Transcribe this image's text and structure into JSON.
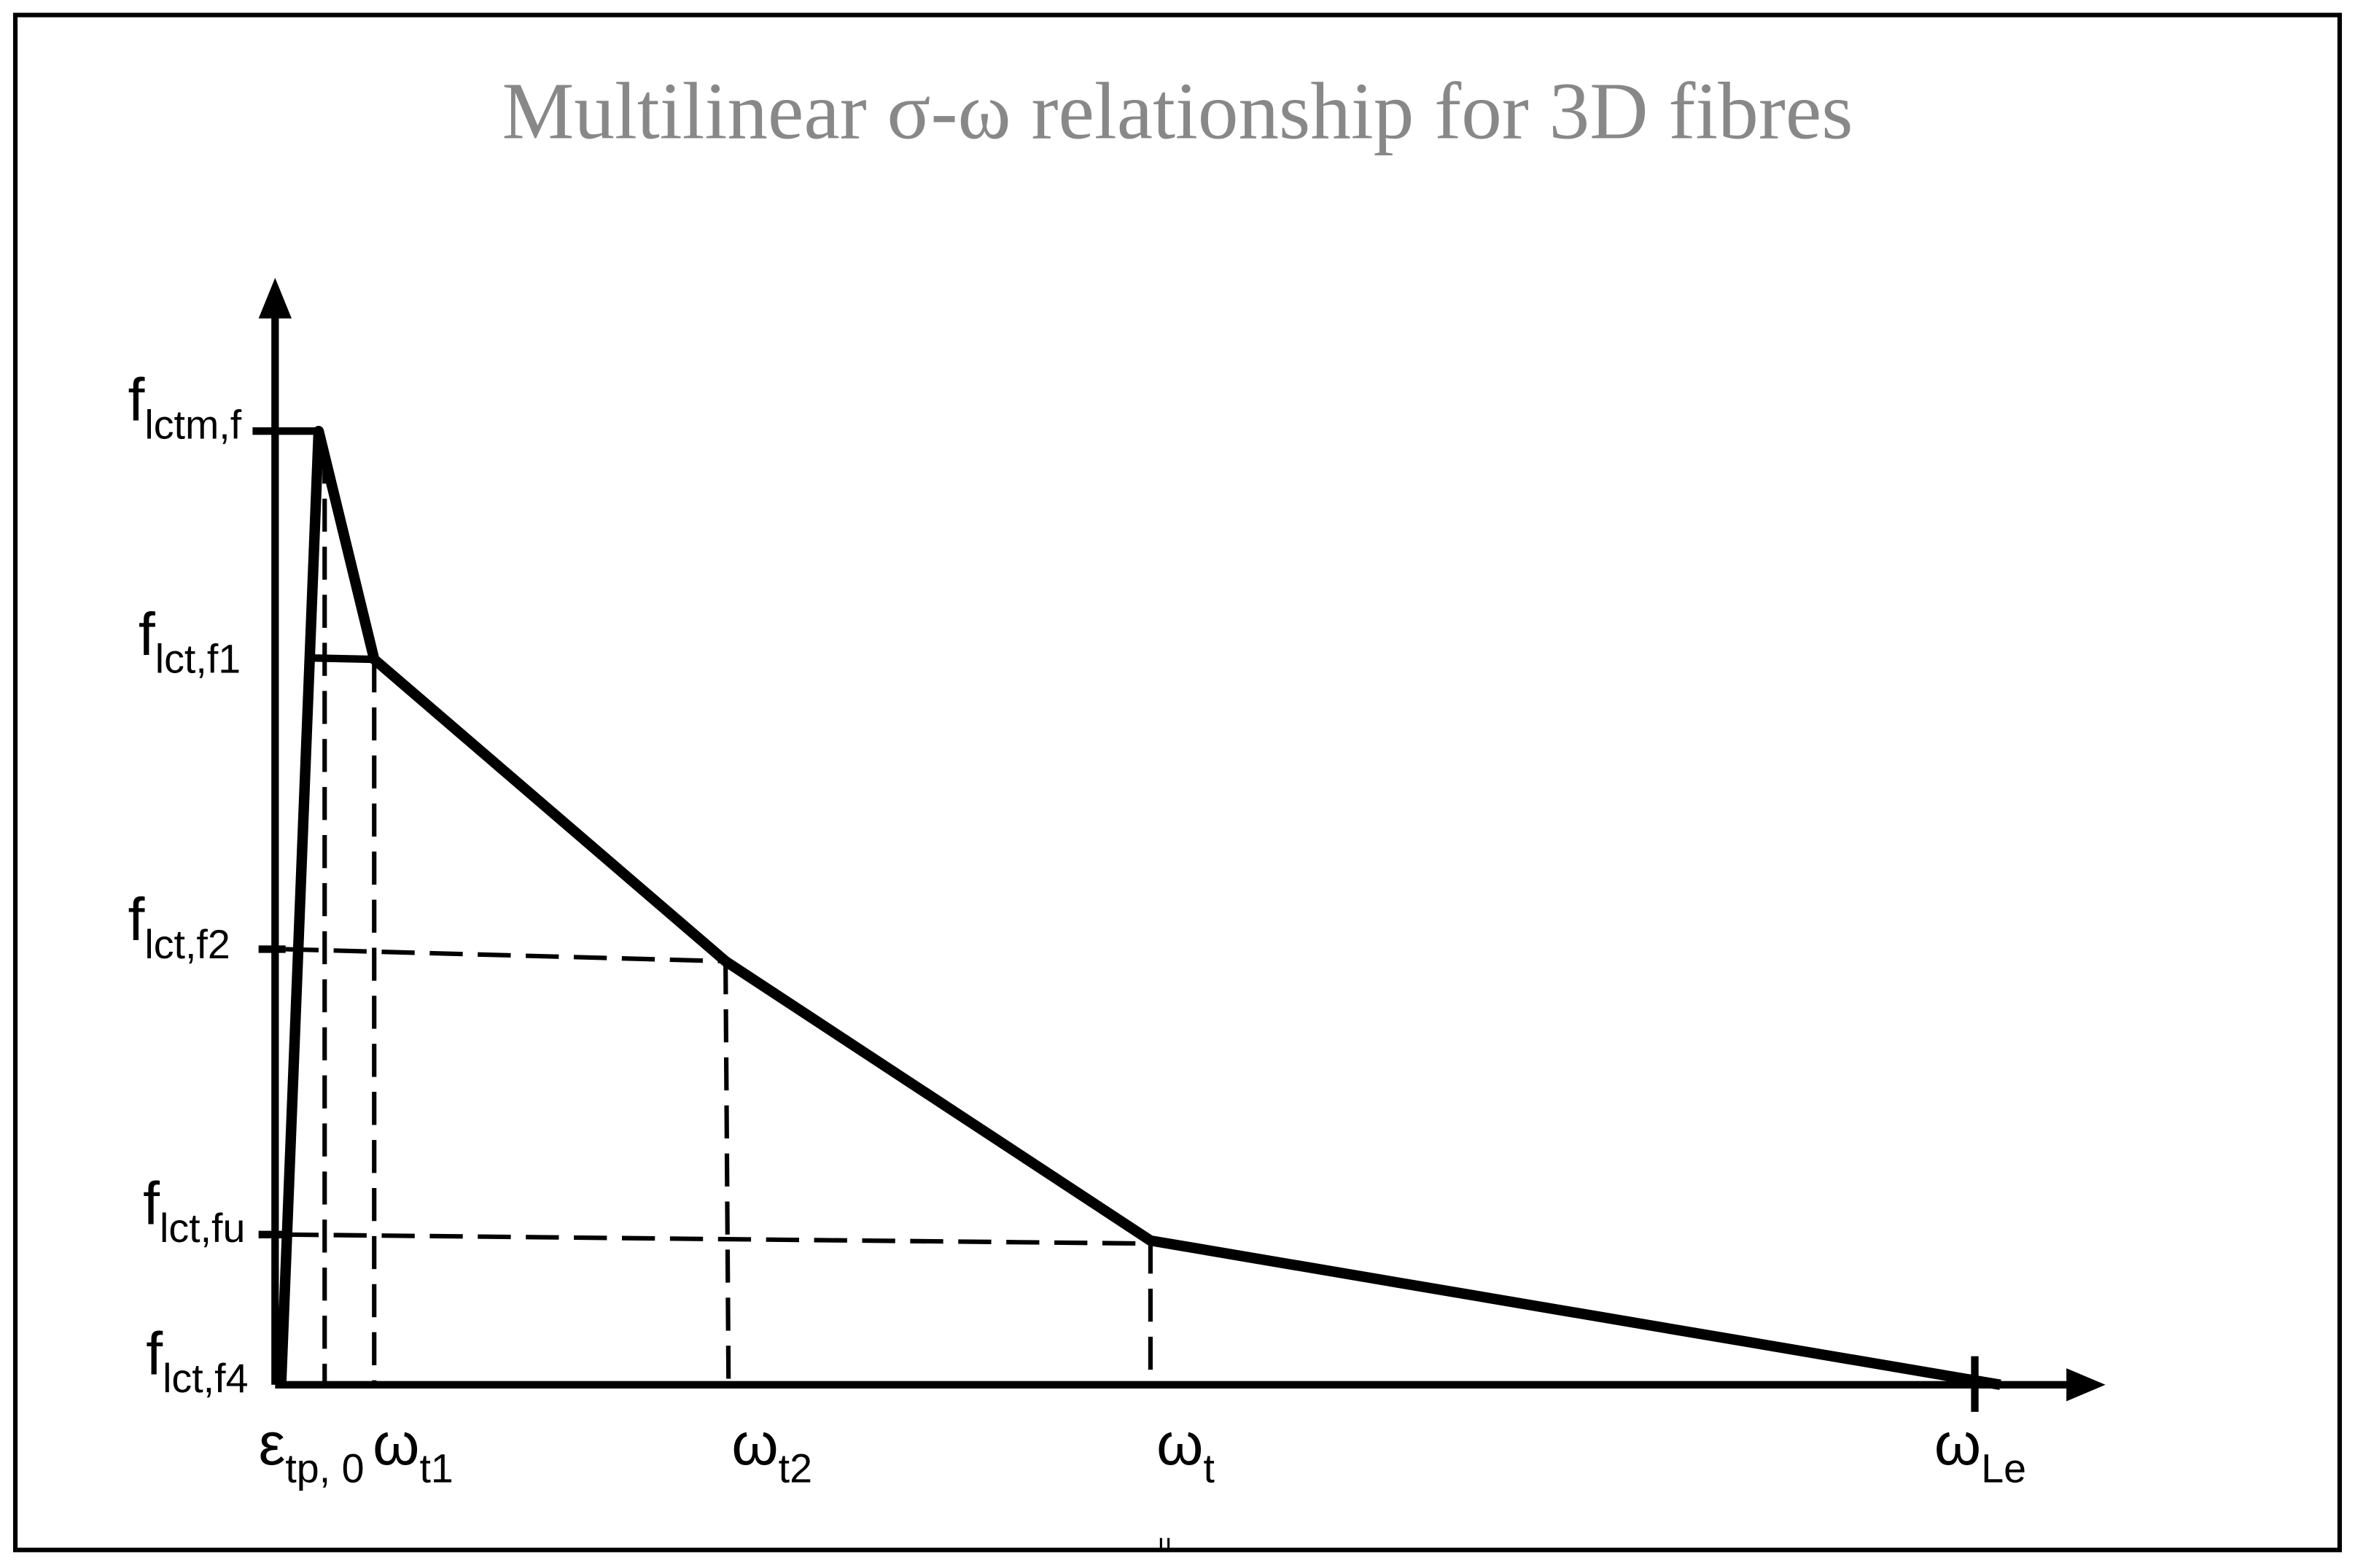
{
  "title": "Multilinear σ-ω relationship for 3D fibres",
  "y_labels": [
    {
      "main": "f",
      "sub": "lctm,f"
    },
    {
      "main": "f",
      "sub": "lct,f1"
    },
    {
      "main": "f",
      "sub": "lct,f2"
    },
    {
      "main": "f",
      "sub": "lct,fu"
    },
    {
      "main": "f",
      "sub": "lct,f4"
    }
  ],
  "x_labels": [
    {
      "main": "ε",
      "sub": "tp, 0"
    },
    {
      "main": "ω",
      "sub": "t1"
    },
    {
      "main": "ω",
      "sub": "t2"
    },
    {
      "main": "ω",
      "sub": "t"
    },
    {
      "main": "ω",
      "sub": "Le"
    }
  ]
}
